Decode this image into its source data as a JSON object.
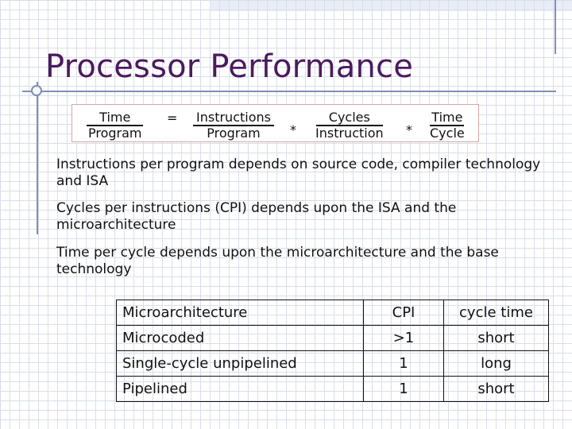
{
  "slide": {
    "title": "Processor Performance",
    "formula": {
      "lhs": {
        "num": "Time",
        "den": "Program"
      },
      "equals": "=",
      "term1": {
        "num": "Instructions",
        "den": "Program"
      },
      "times1": "*",
      "term2": {
        "num": "Cycles",
        "den": "Instruction"
      },
      "times2": "*",
      "term3": {
        "num": "Time",
        "den": "Cycle"
      }
    },
    "bullets": [
      "Instructions per program depends on source code, compiler technology and ISA",
      "Cycles per instructions (CPI) depends upon the ISA and the microarchitecture",
      "Time per cycle depends upon the microarchitecture and the base technology"
    ],
    "table": {
      "headers": [
        "Microarchitecture",
        "CPI",
        "cycle time"
      ],
      "rows": [
        [
          "Microcoded",
          ">1",
          "short"
        ],
        [
          "Single-cycle unpipelined",
          "1",
          "long"
        ],
        [
          "Pipelined",
          "1",
          "short"
        ]
      ]
    }
  }
}
